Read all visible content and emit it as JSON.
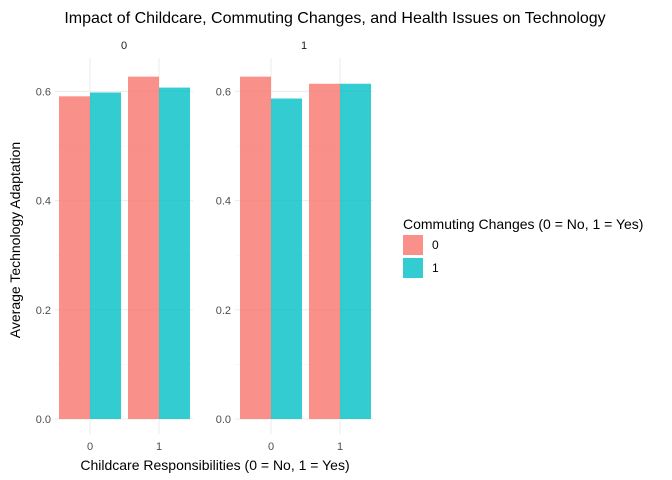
{
  "chart_data": {
    "type": "bar",
    "title": "Impact of Childcare, Commuting Changes, and Health Issues on Technology",
    "xlabel": "Childcare Responsibilities (0 = No, 1 = Yes)",
    "ylabel": "Average Technology Adaptation",
    "ylim": [
      0,
      0.65
    ],
    "yticks": [
      "0.0",
      "0.2",
      "0.4",
      "0.6"
    ],
    "categories": [
      "0",
      "1"
    ],
    "legend": {
      "title": "Commuting Changes (0 = No, 1 = Yes)",
      "placement": "right",
      "entries": [
        {
          "label": "0",
          "color": "#f8766d"
        },
        {
          "label": "1",
          "color": "#00bfc4"
        }
      ]
    },
    "grid": true,
    "panels": [
      {
        "label": "0",
        "series": [
          {
            "name": "0",
            "values": [
              0.591,
              0.627
            ]
          },
          {
            "name": "1",
            "values": [
              0.598,
              0.607
            ]
          }
        ]
      },
      {
        "label": "1",
        "series": [
          {
            "name": "0",
            "values": [
              0.627,
              0.614
            ]
          },
          {
            "name": "1",
            "values": [
              0.587,
              0.614
            ]
          }
        ]
      }
    ]
  }
}
